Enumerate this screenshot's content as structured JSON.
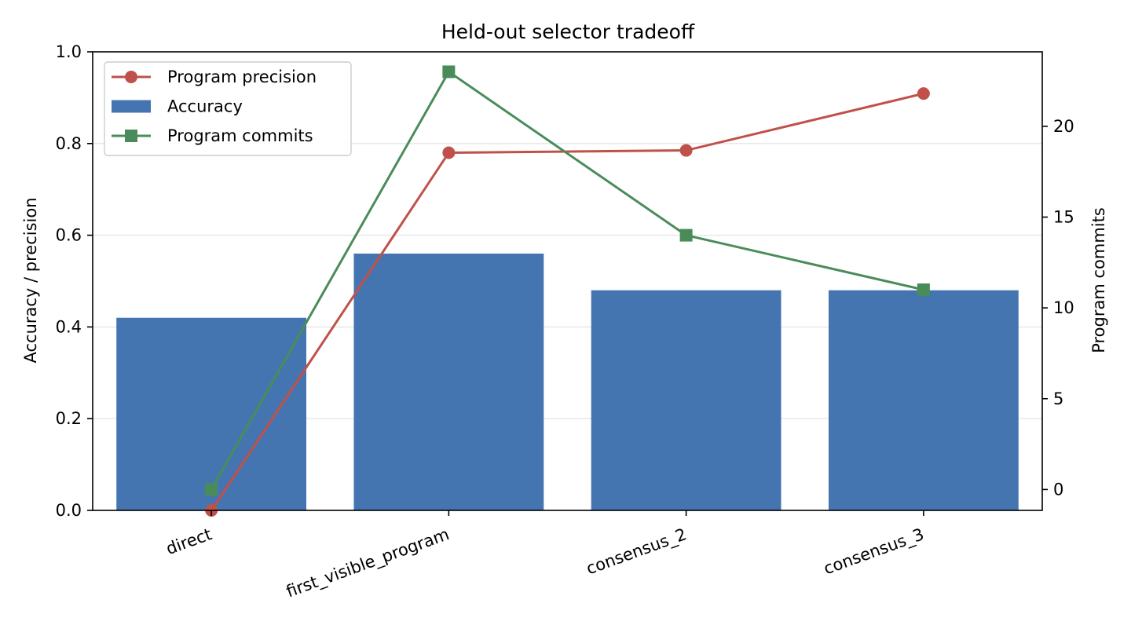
{
  "chart_data": {
    "type": "bar",
    "title": "Held-out selector tradeoff",
    "categories": [
      "direct",
      "first_visible_program",
      "consensus_2",
      "consensus_3"
    ],
    "ylabel": "Accuracy / precision",
    "y2label": "Program commits",
    "ylim": [
      0,
      1.0
    ],
    "y2lim": [
      -1.15,
      24.1
    ],
    "yticks": [
      "0.0",
      "0.2",
      "0.4",
      "0.6",
      "0.8",
      "1.0"
    ],
    "y2ticks": [
      "0",
      "5",
      "10",
      "15",
      "20"
    ],
    "grid": true,
    "legend_position": "top-left",
    "series": [
      {
        "name": "Accuracy",
        "kind": "bar",
        "axis": "left",
        "color": "#4575b0",
        "values": [
          0.42,
          0.56,
          0.48,
          0.48
        ]
      },
      {
        "name": "Program precision",
        "kind": "line",
        "marker": "circle",
        "axis": "left",
        "color": "#c0514a",
        "values": [
          0.0,
          0.78,
          0.785,
          0.909
        ]
      },
      {
        "name": "Program commits",
        "kind": "line",
        "marker": "square",
        "axis": "right",
        "color": "#4a8c59",
        "values": [
          0,
          23,
          14,
          11
        ]
      }
    ],
    "legend": [
      "Program precision",
      "Accuracy",
      "Program commits"
    ]
  }
}
